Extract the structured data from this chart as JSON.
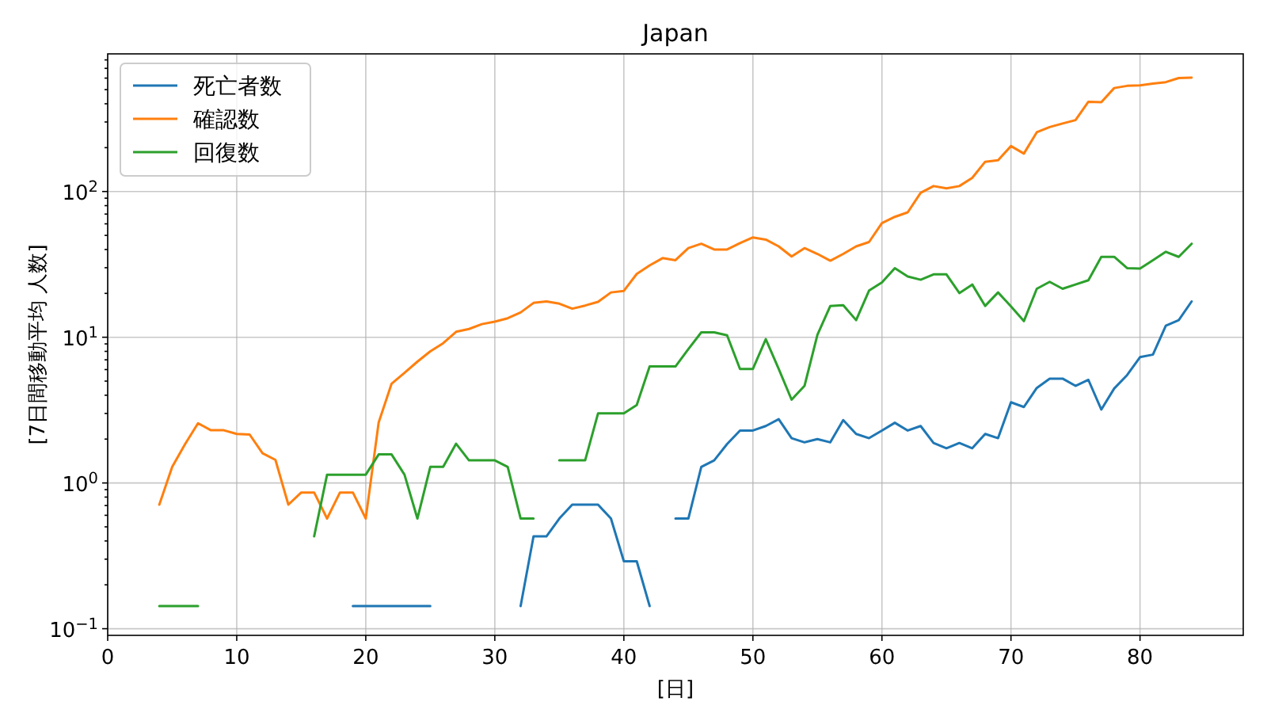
{
  "chart_data": {
    "type": "line",
    "title": "Japan",
    "xlabel": "[日]",
    "ylabel": "[7日間移動平均 人数]",
    "x": [
      4,
      5,
      6,
      7,
      8,
      9,
      10,
      11,
      12,
      13,
      14,
      15,
      16,
      17,
      18,
      19,
      20,
      21,
      22,
      23,
      24,
      25,
      26,
      27,
      28,
      29,
      30,
      31,
      32,
      33,
      34,
      35,
      36,
      37,
      38,
      39,
      40,
      41,
      42,
      43,
      44,
      45,
      46,
      47,
      48,
      49,
      50,
      51,
      52,
      53,
      54,
      55,
      56,
      57,
      58,
      59,
      60,
      61,
      62,
      63,
      64,
      65,
      66,
      67,
      68,
      69,
      70,
      71,
      72,
      73,
      74,
      75,
      76,
      77,
      78,
      79,
      80,
      81,
      82,
      83,
      84
    ],
    "series": [
      {
        "name": "死亡者数",
        "color": "#1f77b4",
        "values": [
          null,
          null,
          null,
          null,
          null,
          null,
          null,
          null,
          null,
          null,
          null,
          null,
          null,
          null,
          null,
          0.143,
          0.143,
          0.143,
          0.143,
          0.143,
          0.143,
          0.143,
          null,
          null,
          null,
          null,
          null,
          null,
          0.143,
          0.43,
          0.43,
          0.57,
          0.71,
          0.71,
          0.71,
          0.57,
          0.29,
          0.29,
          0.143,
          null,
          0.57,
          0.57,
          1.29,
          1.43,
          1.85,
          2.29,
          2.29,
          2.46,
          2.74,
          2.03,
          1.9,
          2.0,
          1.9,
          2.7,
          2.17,
          2.03,
          2.29,
          2.59,
          2.29,
          2.46,
          1.88,
          1.73,
          1.88,
          1.73,
          2.17,
          2.03,
          3.58,
          3.32,
          4.49,
          5.2,
          5.2,
          4.64,
          5.1,
          3.19,
          4.45,
          5.5,
          7.3,
          7.6,
          12.0,
          13.1,
          17.6
        ]
      },
      {
        "name": "確認数",
        "color": "#ff7f0e",
        "values": [
          0.71,
          1.29,
          1.85,
          2.57,
          2.3,
          2.3,
          2.17,
          2.15,
          1.6,
          1.44,
          0.71,
          0.86,
          0.86,
          0.57,
          0.86,
          0.86,
          0.57,
          2.6,
          4.8,
          5.7,
          6.8,
          8.0,
          9.1,
          10.9,
          11.4,
          12.3,
          12.8,
          13.5,
          14.8,
          17.2,
          17.6,
          17.0,
          15.7,
          16.5,
          17.5,
          20.3,
          20.8,
          27.2,
          31.1,
          34.9,
          33.8,
          40.9,
          43.8,
          40.0,
          40.0,
          44.2,
          48.4,
          46.8,
          42.0,
          35.8,
          40.9,
          37.3,
          33.5,
          37.3,
          42.0,
          45.0,
          60.7,
          67,
          72,
          98,
          109,
          105,
          109,
          124,
          160,
          164,
          205,
          182,
          255,
          277,
          293,
          309,
          413,
          410,
          513,
          531,
          535,
          550,
          563,
          601,
          604
        ]
      },
      {
        "name": "回復数",
        "color": "#2ca02c",
        "values": [
          0.143,
          0.143,
          0.143,
          0.143,
          null,
          null,
          null,
          null,
          null,
          null,
          null,
          null,
          0.43,
          1.14,
          1.14,
          1.14,
          1.14,
          1.57,
          1.57,
          1.14,
          0.57,
          1.29,
          1.29,
          1.86,
          1.43,
          1.43,
          1.43,
          1.29,
          0.57,
          0.57,
          null,
          1.43,
          1.43,
          1.43,
          3.0,
          3.0,
          3.0,
          3.43,
          6.3,
          6.3,
          6.3,
          8.3,
          10.8,
          10.8,
          10.3,
          6.06,
          6.06,
          9.7,
          6.06,
          3.73,
          4.64,
          10.4,
          16.4,
          16.6,
          13.1,
          20.9,
          23.8,
          29.8,
          26.1,
          24.8,
          27.0,
          27.0,
          20.1,
          23.0,
          16.4,
          20.3,
          16.3,
          12.9,
          21.5,
          24.0,
          21.5,
          23.0,
          24.6,
          35.6,
          35.6,
          29.8,
          29.6,
          33.8,
          38.6,
          35.6,
          43.8
        ]
      }
    ],
    "log": "y",
    "xlim": [
      0,
      88
    ],
    "ylim": [
      0.09,
      880
    ],
    "xticks": [
      0,
      10,
      20,
      30,
      40,
      50,
      60,
      70,
      80
    ],
    "yticks": [
      {
        "value": 0.1,
        "label": "10$^{−1}$"
      },
      {
        "value": 0.2,
        "label": null
      },
      {
        "value": 0.3,
        "label": null
      },
      {
        "value": 0.4,
        "label": null
      },
      {
        "value": 0.5,
        "label": null
      },
      {
        "value": 0.6,
        "label": null
      },
      {
        "value": 0.7,
        "label": null
      },
      {
        "value": 0.8,
        "label": null
      },
      {
        "value": 0.9,
        "label": null
      },
      {
        "value": 1,
        "label": "10$^{0}$"
      },
      {
        "value": 2,
        "label": null
      },
      {
        "value": 3,
        "label": null
      },
      {
        "value": 4,
        "label": null
      },
      {
        "value": 5,
        "label": null
      },
      {
        "value": 6,
        "label": null
      },
      {
        "value": 7,
        "label": null
      },
      {
        "value": 8,
        "label": null
      },
      {
        "value": 9,
        "label": null
      },
      {
        "value": 10,
        "label": "10$^{1}$"
      },
      {
        "value": 20,
        "label": null
      },
      {
        "value": 30,
        "label": null
      },
      {
        "value": 40,
        "label": null
      },
      {
        "value": 50,
        "label": null
      },
      {
        "value": 60,
        "label": null
      },
      {
        "value": 70,
        "label": null
      },
      {
        "value": 80,
        "label": null
      },
      {
        "value": 90,
        "label": null
      },
      {
        "value": 100,
        "label": "10$^{2}$"
      },
      {
        "value": 200,
        "label": null
      },
      {
        "value": 300,
        "label": null
      },
      {
        "value": 400,
        "label": null
      },
      {
        "value": 500,
        "label": null
      },
      {
        "value": 600,
        "label": null
      },
      {
        "value": 700,
        "label": null
      },
      {
        "value": 800,
        "label": null
      }
    ],
    "grid": true,
    "legend": "top left",
    "line_style": "solid"
  }
}
